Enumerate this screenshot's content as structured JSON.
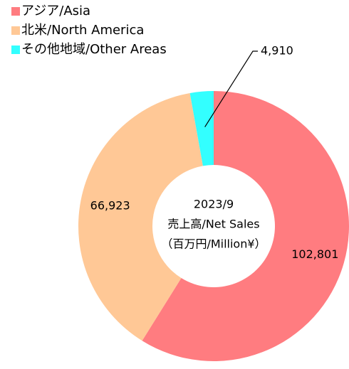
{
  "chart_data": {
    "type": "donut",
    "categories": [
      "アジア/Asia",
      "北米/North America",
      "その他地域/Other Areas"
    ],
    "values": [
      102801,
      66923,
      4910
    ],
    "value_labels": [
      "102,801",
      "66,923",
      "4,910"
    ],
    "colors": [
      "#ff7c80",
      "#ffc896",
      "#33ffff"
    ],
    "center_text": [
      "2023/9",
      "売上高/Net Sales",
      "（百万円/Million¥）"
    ],
    "legend": "top-left"
  }
}
